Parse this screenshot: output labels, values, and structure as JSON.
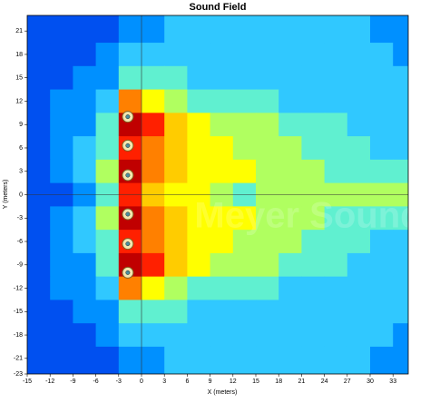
{
  "chart_data": {
    "type": "heatmap",
    "title": "Sound Field",
    "x_label": "X (meters)",
    "y_label": "Y (meters)",
    "watermark": "Meyer Sound",
    "xlim": [
      -15,
      35
    ],
    "ylim": [
      -23,
      23
    ],
    "xticks": [
      -15,
      -12,
      -9,
      -6,
      -3,
      0,
      3,
      6,
      9,
      12,
      15,
      18,
      21,
      24,
      27,
      30,
      33
    ],
    "yticks": [
      21,
      18,
      15,
      12,
      9,
      6,
      3,
      0,
      -3,
      -6,
      -9,
      -12,
      -15,
      -18,
      -21,
      -23
    ],
    "x_edges": [
      -15,
      -12,
      -9,
      -6,
      -3,
      0,
      3,
      6,
      9,
      12,
      15,
      18,
      21,
      24,
      27,
      30,
      33,
      36
    ],
    "y_edges": [
      23,
      19.5,
      16.5,
      13.5,
      10.5,
      7.5,
      4.5,
      1.5,
      -1.5,
      -4.5,
      -7.5,
      -10.5,
      -13.5,
      -16.5,
      -19.5,
      -23
    ],
    "colors": [
      "#0022bb",
      "#0050f0",
      "#0090ff",
      "#30c8ff",
      "#60f0d0",
      "#b0ff60",
      "#ffff00",
      "#ffcc00",
      "#ff8000",
      "#ff2000",
      "#c00000"
    ],
    "z": [
      [
        1,
        1,
        1,
        1,
        2,
        2,
        3,
        3,
        3,
        3,
        3,
        3,
        3,
        3,
        3,
        2,
        2
      ],
      [
        1,
        1,
        1,
        2,
        3,
        3,
        3,
        3,
        3,
        3,
        3,
        3,
        3,
        3,
        3,
        3,
        2
      ],
      [
        1,
        1,
        2,
        2,
        4,
        4,
        4,
        3,
        3,
        3,
        3,
        3,
        3,
        3,
        3,
        3,
        3
      ],
      [
        1,
        2,
        2,
        3,
        8,
        6,
        5,
        4,
        4,
        4,
        4,
        3,
        3,
        3,
        3,
        3,
        3
      ],
      [
        1,
        2,
        2,
        4,
        10,
        9,
        7,
        6,
        5,
        5,
        5,
        4,
        4,
        4,
        3,
        3,
        3
      ],
      [
        1,
        2,
        3,
        4,
        9,
        8,
        7,
        6,
        6,
        5,
        5,
        5,
        4,
        4,
        4,
        3,
        3
      ],
      [
        1,
        2,
        3,
        5,
        10,
        8,
        7,
        6,
        6,
        6,
        5,
        5,
        5,
        4,
        4,
        4,
        4
      ],
      [
        1,
        1,
        2,
        4,
        9,
        7,
        6,
        6,
        5,
        4,
        5,
        5,
        5,
        5,
        5,
        5,
        5
      ],
      [
        1,
        2,
        3,
        5,
        10,
        8,
        7,
        6,
        6,
        6,
        5,
        5,
        5,
        4,
        4,
        4,
        4
      ],
      [
        1,
        2,
        3,
        4,
        9,
        8,
        7,
        6,
        6,
        5,
        5,
        5,
        4,
        4,
        4,
        3,
        3
      ],
      [
        1,
        2,
        2,
        4,
        10,
        9,
        7,
        6,
        5,
        5,
        5,
        4,
        4,
        4,
        3,
        3,
        3
      ],
      [
        1,
        2,
        2,
        3,
        8,
        6,
        5,
        4,
        4,
        4,
        4,
        3,
        3,
        3,
        3,
        3,
        3
      ],
      [
        1,
        1,
        2,
        2,
        4,
        4,
        4,
        3,
        3,
        3,
        3,
        3,
        3,
        3,
        3,
        3,
        3
      ],
      [
        1,
        1,
        1,
        2,
        3,
        3,
        3,
        3,
        3,
        3,
        3,
        3,
        3,
        3,
        3,
        3,
        2
      ],
      [
        1,
        1,
        1,
        1,
        2,
        2,
        3,
        3,
        3,
        3,
        3,
        3,
        3,
        3,
        3,
        2,
        2
      ]
    ],
    "speakers": {
      "x": [
        -1.8,
        -1.8,
        -1.8,
        -1.8,
        -1.8,
        -1.8
      ],
      "y": [
        10,
        6.3,
        2.5,
        -2.5,
        -6.3,
        -10
      ]
    }
  }
}
